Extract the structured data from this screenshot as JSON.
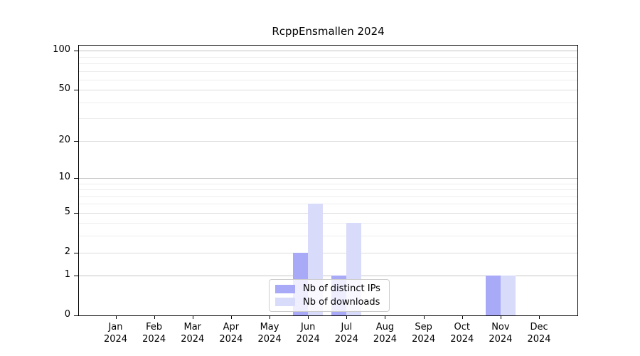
{
  "chart_data": {
    "type": "bar",
    "title": "RcppEnsmallen 2024",
    "categories": [
      {
        "month": "Jan",
        "year": "2024"
      },
      {
        "month": "Feb",
        "year": "2024"
      },
      {
        "month": "Mar",
        "year": "2024"
      },
      {
        "month": "Apr",
        "year": "2024"
      },
      {
        "month": "May",
        "year": "2024"
      },
      {
        "month": "Jun",
        "year": "2024"
      },
      {
        "month": "Jul",
        "year": "2024"
      },
      {
        "month": "Aug",
        "year": "2024"
      },
      {
        "month": "Sep",
        "year": "2024"
      },
      {
        "month": "Oct",
        "year": "2024"
      },
      {
        "month": "Nov",
        "year": "2024"
      },
      {
        "month": "Dec",
        "year": "2024"
      }
    ],
    "series": [
      {
        "name": "Nb of distinct IPs",
        "color": "#a9aaf7",
        "values": [
          0,
          0,
          0,
          0,
          0,
          2,
          1,
          0,
          0,
          0,
          1,
          0
        ]
      },
      {
        "name": "Nb of downloads",
        "color": "#d9dbfa",
        "values": [
          0,
          0,
          0,
          0,
          0,
          6,
          4,
          0,
          0,
          0,
          1,
          0
        ]
      }
    ],
    "y_axis": {
      "scale": "log1p",
      "ylim": [
        0,
        110
      ],
      "tick_values": [
        0,
        1,
        2,
        5,
        10,
        20,
        50,
        100
      ],
      "major_grid": [
        1,
        10,
        100
      ],
      "mid_grid": [
        2,
        5,
        20,
        50
      ],
      "minor_grid": [
        3,
        4,
        6,
        7,
        8,
        9,
        30,
        40,
        60,
        70,
        80,
        90
      ]
    },
    "xlabel": "",
    "ylabel": "",
    "grid": true,
    "legend_position": "bottom-center-inside"
  },
  "colors": {
    "background": "#ffffff",
    "axis": "#000000",
    "major_grid": "#c4c4c4",
    "mid_grid": "#dcdcdc",
    "minor_grid": "#ededed",
    "legend_border": "#cccccc"
  }
}
